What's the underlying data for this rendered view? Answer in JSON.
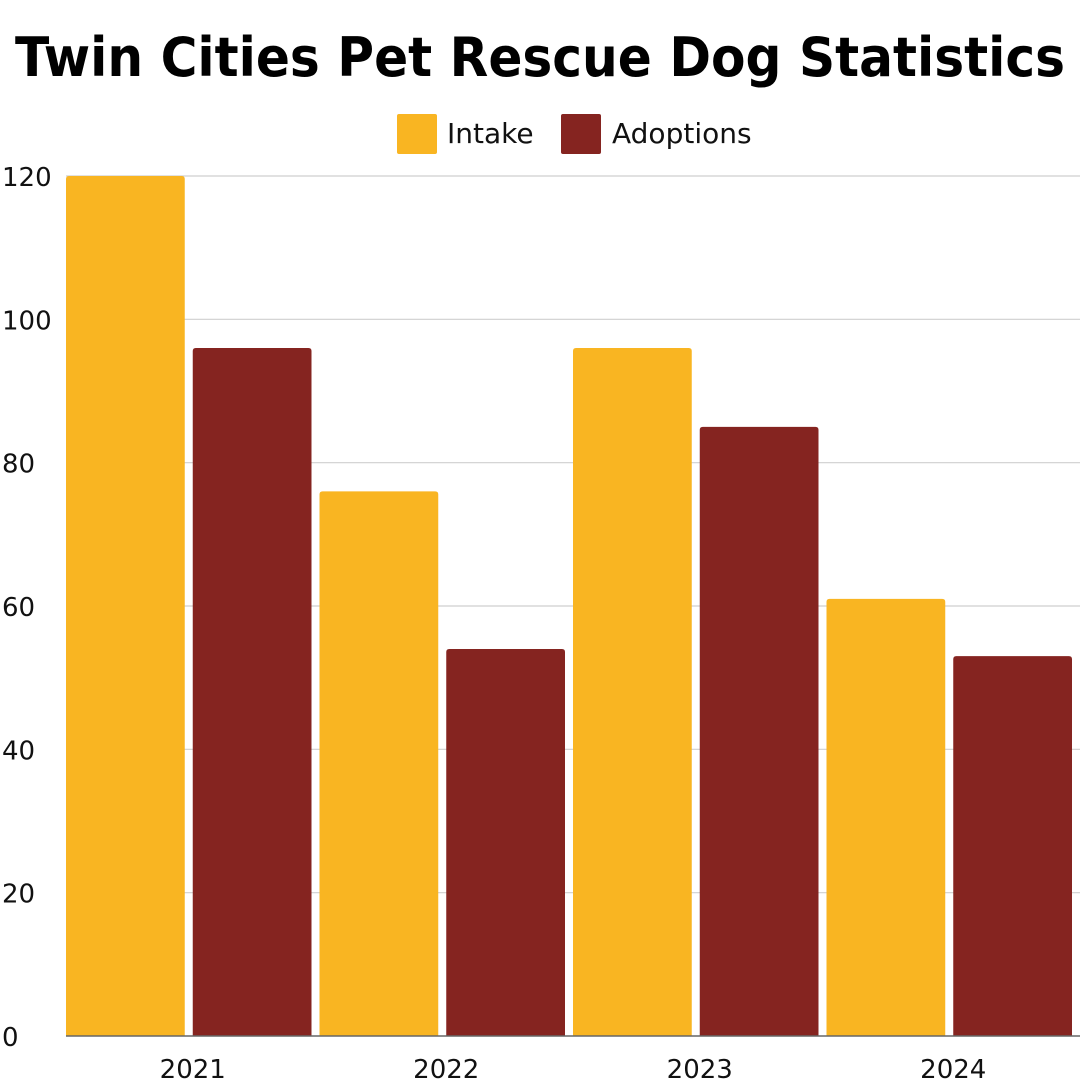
{
  "chart_data": {
    "type": "bar",
    "title": "Twin Cities Pet Rescue Dog Statistics",
    "xlabel": "",
    "ylabel": "",
    "categories": [
      "2021",
      "2022",
      "2023",
      "2024"
    ],
    "series": [
      {
        "name": "Intake",
        "values": [
          120,
          76,
          96,
          61
        ],
        "color": "#F9B522"
      },
      {
        "name": "Adoptions",
        "values": [
          96,
          54,
          85,
          53
        ],
        "color": "#852420"
      }
    ],
    "ylim": [
      0,
      120
    ],
    "yticks": [
      0,
      20,
      40,
      60,
      80,
      100,
      120
    ],
    "grid": true,
    "legend": "top-center"
  }
}
